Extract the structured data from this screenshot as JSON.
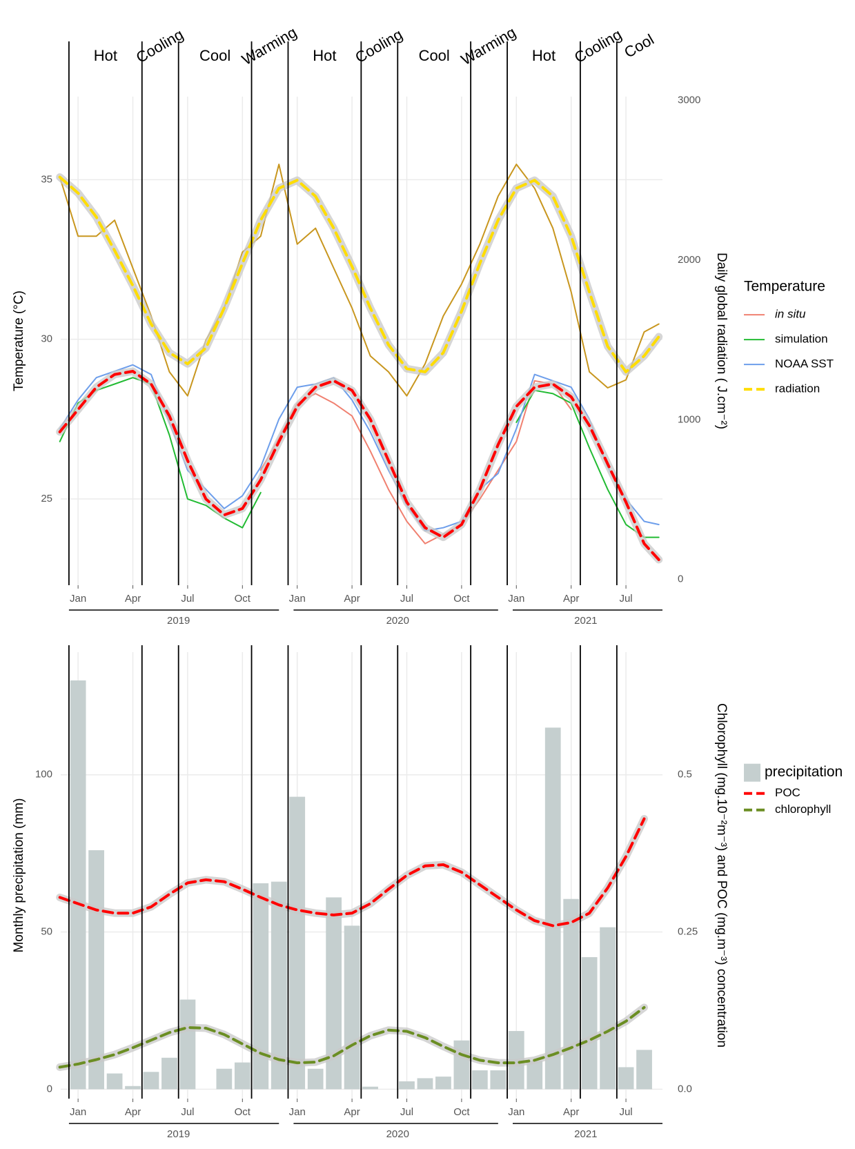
{
  "chart_data": [
    {
      "type": "line",
      "ylabel": "Temperature (°C)",
      "y2label": "Daily global radiation ( J.cm⁻²)",
      "legend_title": "Temperature",
      "legend": "right",
      "grid": true,
      "xlim": [
        -0.95,
        32.0
      ],
      "ylim": [
        22.3,
        37.6
      ],
      "y2lim": [
        -36,
        3024
      ],
      "xticks": [
        {
          "value": 0,
          "label": "Jan"
        },
        {
          "value": 3,
          "label": "Apr"
        },
        {
          "value": 6,
          "label": "Jul"
        },
        {
          "value": 9,
          "label": "Oct"
        },
        {
          "value": 12,
          "label": "Jan"
        },
        {
          "value": 15,
          "label": "Apr"
        },
        {
          "value": 18,
          "label": "Jul"
        },
        {
          "value": 21,
          "label": "Oct"
        },
        {
          "value": 24,
          "label": "Jan"
        },
        {
          "value": 27,
          "label": "Apr"
        },
        {
          "value": 30,
          "label": "Jul"
        }
      ],
      "year_labels": [
        {
          "value": 5.5,
          "label": "2019"
        },
        {
          "value": 17.5,
          "label": "2020"
        },
        {
          "value": 27.8,
          "label": "2021"
        }
      ],
      "yticks": [
        25,
        30,
        35
      ],
      "y2ticks": [
        0,
        1000,
        2000,
        3000
      ],
      "phases": [
        {
          "start": -0.5,
          "label": "Hot"
        },
        {
          "start": 3.5,
          "label": "Cooling"
        },
        {
          "start": 5.5,
          "label": "Cool"
        },
        {
          "start": 9.5,
          "label": "Warming"
        },
        {
          "start": 11.5,
          "label": "Hot"
        },
        {
          "start": 15.5,
          "label": "Cooling"
        },
        {
          "start": 17.5,
          "label": "Cool"
        },
        {
          "start": 21.5,
          "label": "Warming"
        },
        {
          "start": 23.5,
          "label": "Hot"
        },
        {
          "start": 27.5,
          "label": "Cooling"
        },
        {
          "start": 29.5,
          "label": "Cool"
        }
      ],
      "x": [
        -1,
        0,
        1,
        2,
        3,
        4,
        5,
        6,
        7,
        8,
        9,
        10,
        11,
        12,
        13,
        14,
        15,
        16,
        17,
        18,
        19,
        20,
        21,
        22,
        23,
        24,
        25,
        26,
        27,
        28,
        29,
        30,
        31,
        31.8
      ],
      "series": [
        {
          "name": "in situ",
          "italic": true,
          "color": "#f08070",
          "values": [
            null,
            null,
            null,
            null,
            null,
            null,
            null,
            null,
            null,
            null,
            null,
            25.9,
            26.9,
            28.0,
            28.3,
            28.0,
            27.6,
            26.5,
            25.3,
            24.3,
            23.6,
            23.9,
            24.2,
            25.0,
            25.9,
            26.8,
            28.7,
            28.6,
            27.8,
            null,
            null,
            null,
            null,
            null
          ]
        },
        {
          "name": "simulation",
          "color": "#22bb33",
          "values": [
            26.8,
            28.0,
            28.4,
            28.6,
            28.8,
            28.6,
            27.0,
            25.0,
            24.8,
            24.4,
            24.1,
            25.2,
            null,
            null,
            null,
            null,
            null,
            null,
            null,
            null,
            null,
            null,
            null,
            null,
            null,
            27.4,
            28.4,
            28.3,
            28.0,
            26.6,
            25.3,
            24.2,
            23.8,
            23.8
          ]
        },
        {
          "name": "NOAA SST",
          "color": "#6d9eeb",
          "values": [
            27.2,
            28.1,
            28.8,
            29.0,
            29.2,
            28.9,
            27.4,
            25.9,
            25.3,
            24.7,
            25.1,
            26.0,
            27.5,
            28.5,
            28.6,
            28.8,
            28.1,
            27.1,
            25.9,
            24.8,
            24.0,
            24.1,
            24.3,
            25.3,
            25.8,
            27.2,
            28.9,
            28.7,
            28.5,
            27.5,
            26.0,
            25.0,
            24.3,
            24.2
          ]
        },
        {
          "name": "radiation",
          "color": "#ffdd00",
          "dash": true,
          "smooth": true,
          "axis": "y2",
          "values": [
            2520,
            2420,
            2270,
            2060,
            1840,
            1600,
            1420,
            1350,
            1450,
            1700,
            1980,
            2250,
            2450,
            2500,
            2400,
            2200,
            1960,
            1700,
            1470,
            1320,
            1300,
            1420,
            1680,
            1980,
            2250,
            2450,
            2500,
            2400,
            2150,
            1800,
            1460,
            1300,
            1400,
            1520
          ]
        },
        {
          "color": "#c8961e",
          "axis": "y2",
          "values": [
            2520,
            2150,
            2150,
            2250,
            1950,
            1650,
            1300,
            1150,
            1500,
            1700,
            2050,
            2150,
            2600,
            2100,
            2200,
            1950,
            1700,
            1400,
            1300,
            1150,
            1350,
            1650,
            1850,
            2100,
            2400,
            2600,
            2450,
            2200,
            1800,
            1300,
            1200,
            1250,
            1550,
            1600
          ]
        },
        {
          "color": "#ff0000",
          "dash": true,
          "smooth": true,
          "values": [
            27.1,
            27.8,
            28.5,
            28.9,
            29.0,
            28.6,
            27.6,
            26.2,
            25.0,
            24.5,
            24.7,
            25.6,
            26.8,
            27.9,
            28.5,
            28.7,
            28.4,
            27.5,
            26.2,
            24.9,
            24.1,
            23.8,
            24.2,
            25.3,
            26.7,
            27.9,
            28.5,
            28.6,
            28.2,
            27.3,
            26.1,
            24.9,
            23.6,
            23.1
          ]
        }
      ]
    },
    {
      "type": "combo",
      "ylabel": "Monthly precipitation (mm)",
      "y2label": "Chlorophyll (mg.10⁻²m⁻³) and POC (mg.m⁻³) concentration",
      "legend": "right",
      "grid": true,
      "xlim": [
        -0.95,
        32.0
      ],
      "ylim": [
        -3,
        139
      ],
      "y2lim": [
        -0.015,
        0.695
      ],
      "xticks": [
        {
          "value": 0,
          "label": "Jan"
        },
        {
          "value": 3,
          "label": "Apr"
        },
        {
          "value": 6,
          "label": "Jul"
        },
        {
          "value": 9,
          "label": "Oct"
        },
        {
          "value": 12,
          "label": "Jan"
        },
        {
          "value": 15,
          "label": "Apr"
        },
        {
          "value": 18,
          "label": "Jul"
        },
        {
          "value": 21,
          "label": "Oct"
        },
        {
          "value": 24,
          "label": "Jan"
        },
        {
          "value": 27,
          "label": "Apr"
        },
        {
          "value": 30,
          "label": "Jul"
        }
      ],
      "year_labels": [
        {
          "value": 5.5,
          "label": "2019"
        },
        {
          "value": 17.5,
          "label": "2020"
        },
        {
          "value": 27.8,
          "label": "2021"
        }
      ],
      "yticks": [
        0,
        50,
        100
      ],
      "y2ticks": [
        {
          "value": 0,
          "label": "0.0"
        },
        0.25,
        0.5
      ],
      "phase_lines": [
        -0.5,
        3.5,
        5.5,
        9.5,
        11.5,
        15.5,
        17.5,
        21.5,
        23.5,
        27.5,
        29.5
      ],
      "x": [
        -1,
        0,
        1,
        2,
        3,
        4,
        5,
        6,
        7,
        8,
        9,
        10,
        11,
        12,
        13,
        14,
        15,
        16,
        17,
        18,
        19,
        20,
        21,
        22,
        23,
        24,
        25,
        26,
        27,
        28,
        29,
        30,
        31
      ],
      "series": [
        {
          "name": "precipitation",
          "kind": "bar",
          "color": "#c5cfcf",
          "values": [
            null,
            130,
            76,
            5,
            1,
            5.5,
            10,
            28.5,
            0,
            6.5,
            8.5,
            65.5,
            66,
            93,
            6.5,
            61,
            52,
            0.8,
            0,
            2.5,
            3.5,
            4,
            15.5,
            6,
            6,
            18.5,
            9,
            115,
            60.5,
            42,
            51.5,
            7,
            12.5
          ]
        },
        {
          "name": "POC",
          "color": "#ff0000",
          "dash": true,
          "smooth": true,
          "axis": "y2",
          "values": [
            0.305,
            0.295,
            0.285,
            0.28,
            0.28,
            0.29,
            0.31,
            0.328,
            0.333,
            0.33,
            0.318,
            0.305,
            0.293,
            0.285,
            0.28,
            0.277,
            0.28,
            0.295,
            0.318,
            0.34,
            0.355,
            0.357,
            0.345,
            0.325,
            0.305,
            0.285,
            0.268,
            0.26,
            0.265,
            0.28,
            0.32,
            0.37,
            0.43
          ]
        },
        {
          "name": "chlorophyll",
          "color": "#6b8e23",
          "dash": true,
          "smooth": true,
          "axis": "y2",
          "values": [
            0.035,
            0.04,
            0.047,
            0.055,
            0.066,
            0.078,
            0.09,
            0.098,
            0.097,
            0.087,
            0.072,
            0.057,
            0.047,
            0.042,
            0.043,
            0.053,
            0.07,
            0.085,
            0.094,
            0.092,
            0.082,
            0.068,
            0.055,
            0.046,
            0.042,
            0.042,
            0.046,
            0.055,
            0.066,
            0.078,
            0.092,
            0.108,
            0.13
          ]
        }
      ]
    }
  ]
}
